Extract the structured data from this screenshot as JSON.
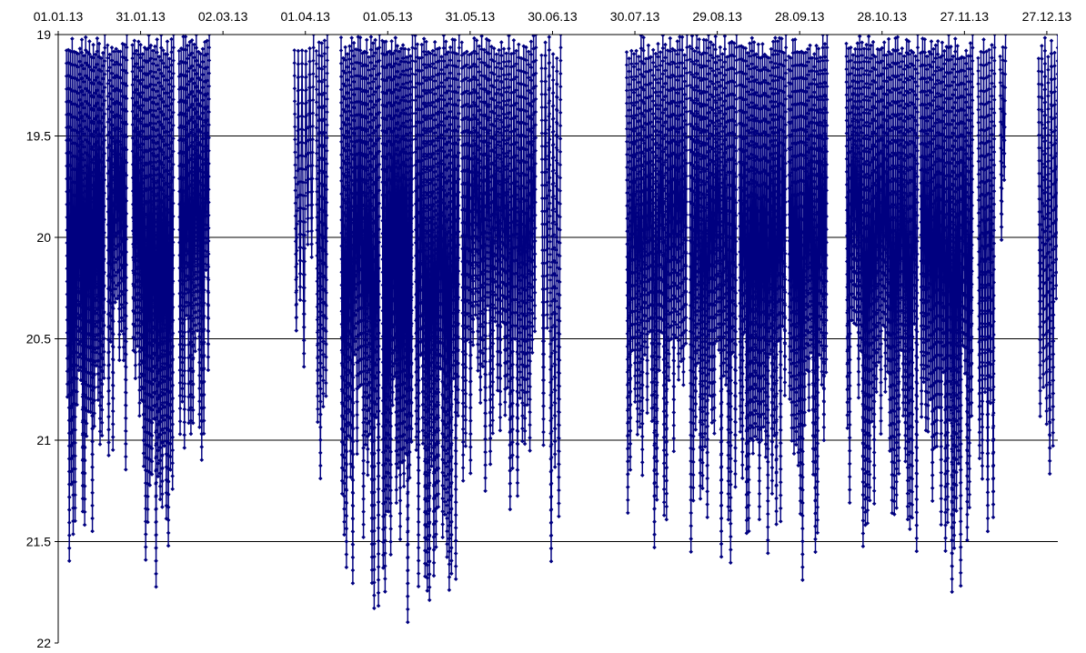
{
  "chart_data": {
    "type": "line",
    "title": "",
    "xlabel": "",
    "ylabel": "",
    "y_axis_inverted": true,
    "x_axis_position": "top",
    "ylim": [
      19,
      22
    ],
    "xlim": [
      "2013-01-01",
      "2013-12-31"
    ],
    "grid": {
      "horizontal": true,
      "vertical": false
    },
    "legend": "none",
    "x_tick_labels": [
      "01.01.13",
      "31.01.13",
      "02.03.13",
      "01.04.13",
      "01.05.13",
      "31.05.13",
      "30.06.13",
      "30.07.13",
      "29.08.13",
      "28.09.13",
      "28.10.13",
      "27.11.13",
      "27.12.13"
    ],
    "y_tick_labels": [
      "19",
      "19.5",
      "20",
      "20.5",
      "21",
      "21.5",
      "22"
    ],
    "series": [
      {
        "color": "#000080",
        "marker": "diamond",
        "points_note_free": true,
        "segments": [
          {
            "start": "2013-01-04",
            "end": "2013-01-18",
            "min": 19.0,
            "max": 21.6,
            "cycles": 20
          },
          {
            "start": "2013-01-19",
            "end": "2013-01-26",
            "min": 19.0,
            "max": 21.2,
            "cycles": 9
          },
          {
            "start": "2013-01-28",
            "end": "2013-02-12",
            "min": 19.0,
            "max": 21.78,
            "cycles": 20
          },
          {
            "start": "2013-02-14",
            "end": "2013-02-25",
            "min": 19.0,
            "max": 21.1,
            "cycles": 14
          },
          {
            "start": "2013-03-28",
            "end": "2013-04-04",
            "min": 19.0,
            "max": 20.7,
            "cycles": 5
          },
          {
            "start": "2013-04-05",
            "end": "2013-04-09",
            "min": 19.0,
            "max": 21.55,
            "cycles": 4
          },
          {
            "start": "2013-04-14",
            "end": "2013-04-28",
            "min": 19.0,
            "max": 21.85,
            "cycles": 18
          },
          {
            "start": "2013-04-29",
            "end": "2013-05-10",
            "min": 19.0,
            "max": 21.99,
            "cycles": 16
          },
          {
            "start": "2013-05-11",
            "end": "2013-05-27",
            "min": 19.0,
            "max": 21.8,
            "cycles": 20
          },
          {
            "start": "2013-05-28",
            "end": "2013-06-24",
            "min": 19.0,
            "max": 21.35,
            "cycles": 30
          },
          {
            "start": "2013-06-26",
            "end": "2013-07-03",
            "min": 19.0,
            "max": 21.62,
            "cycles": 5
          },
          {
            "start": "2013-07-27",
            "end": "2013-08-18",
            "min": 19.0,
            "max": 21.55,
            "cycles": 25
          },
          {
            "start": "2013-08-19",
            "end": "2013-09-05",
            "min": 19.0,
            "max": 21.65,
            "cycles": 20
          },
          {
            "start": "2013-09-06",
            "end": "2013-09-23",
            "min": 19.0,
            "max": 21.6,
            "cycles": 22
          },
          {
            "start": "2013-09-24",
            "end": "2013-10-08",
            "min": 19.0,
            "max": 21.78,
            "cycles": 18
          },
          {
            "start": "2013-10-15",
            "end": "2013-11-10",
            "min": 19.0,
            "max": 21.55,
            "cycles": 32
          },
          {
            "start": "2013-11-11",
            "end": "2013-11-30",
            "min": 19.0,
            "max": 21.76,
            "cycles": 24
          },
          {
            "start": "2013-12-02",
            "end": "2013-12-08",
            "min": 19.0,
            "max": 21.5,
            "cycles": 6
          },
          {
            "start": "2013-12-10",
            "end": "2013-12-12",
            "min": 19.0,
            "max": 20.15,
            "cycles": 2
          },
          {
            "start": "2013-12-24",
            "end": "2013-12-31",
            "min": 19.0,
            "max": 21.25,
            "cycles": 6
          }
        ]
      }
    ]
  }
}
